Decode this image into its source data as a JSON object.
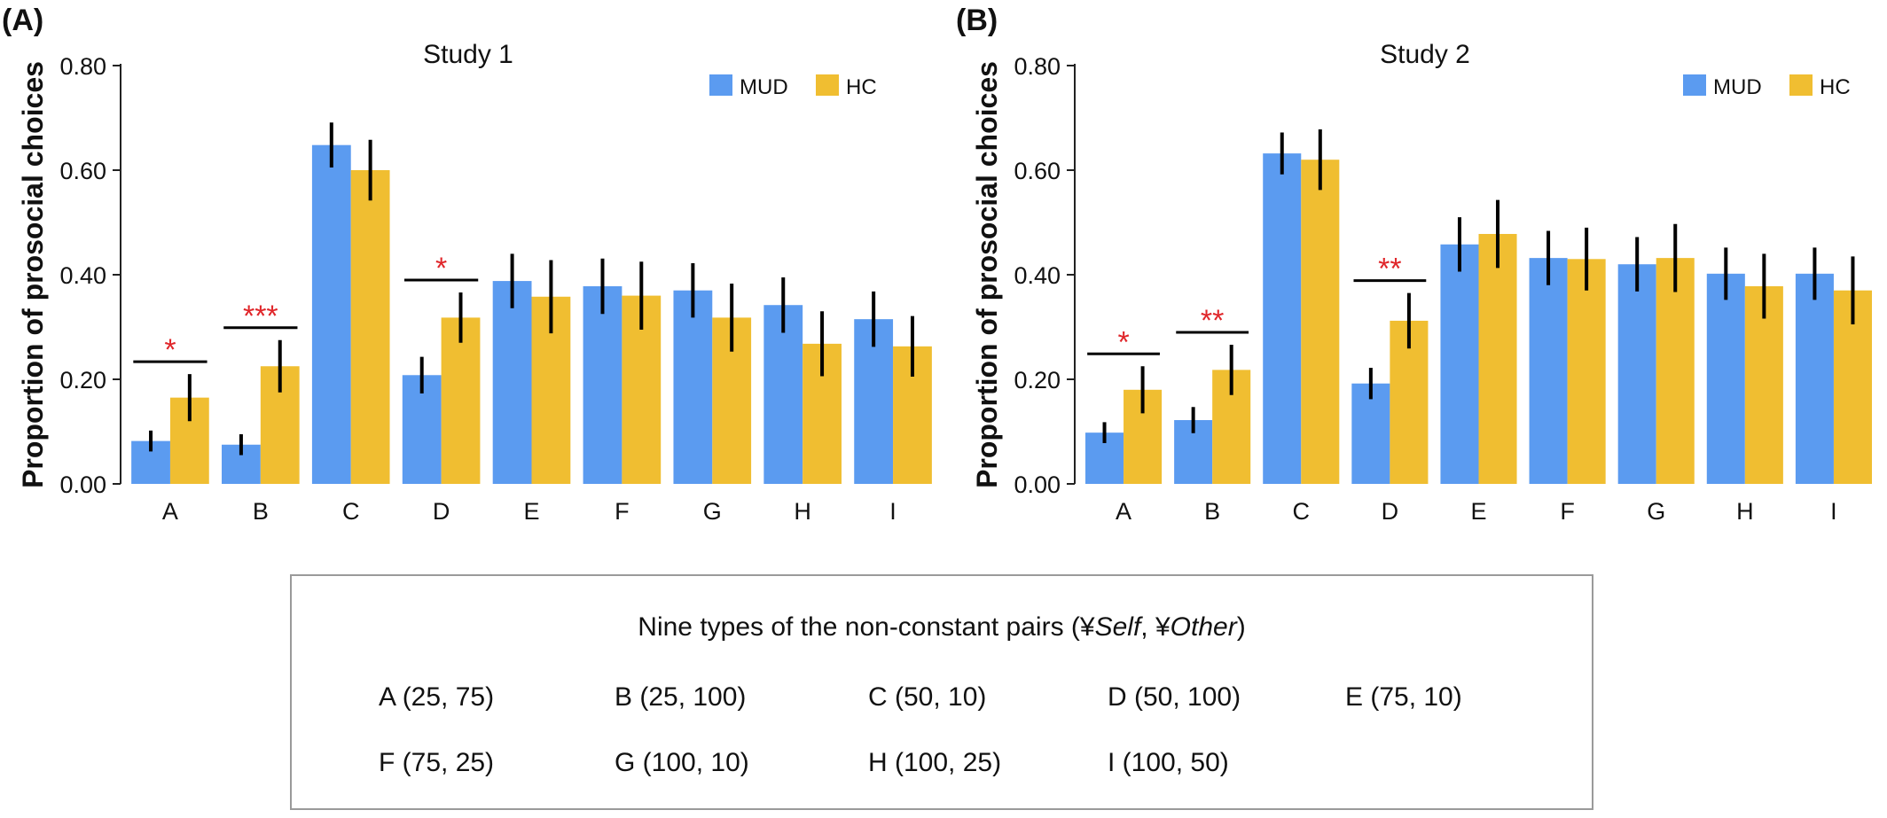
{
  "chart_data": [
    {
      "panel_label": "(A)",
      "type": "bar",
      "title": "Study 1",
      "xlabel": "",
      "ylabel": "Proportion of prosocial choices",
      "ylim": [
        0,
        0.8
      ],
      "yticks": [
        "0.00",
        "0.20",
        "0.40",
        "0.60",
        "0.80"
      ],
      "categories": [
        "A",
        "B",
        "C",
        "D",
        "E",
        "F",
        "G",
        "H",
        "I"
      ],
      "legend_position": "top-right",
      "series": [
        {
          "name": "MUD",
          "color": "#5b9bf0",
          "values": [
            0.082,
            0.075,
            0.648,
            0.208,
            0.388,
            0.378,
            0.37,
            0.342,
            0.315
          ],
          "err": [
            0.02,
            0.02,
            0.043,
            0.035,
            0.052,
            0.053,
            0.052,
            0.053,
            0.053
          ]
        },
        {
          "name": "HC",
          "color": "#f0be31",
          "values": [
            0.165,
            0.225,
            0.6,
            0.318,
            0.358,
            0.36,
            0.318,
            0.268,
            0.263
          ],
          "err": [
            0.045,
            0.05,
            0.058,
            0.048,
            0.07,
            0.065,
            0.065,
            0.062,
            0.058
          ]
        }
      ],
      "significance": [
        {
          "category": "A",
          "label": "*"
        },
        {
          "category": "B",
          "label": "***"
        },
        {
          "category": "D",
          "label": "*"
        }
      ]
    },
    {
      "panel_label": "(B)",
      "type": "bar",
      "title": "Study 2",
      "xlabel": "",
      "ylabel": "Proportion of prosocial choices",
      "ylim": [
        0,
        0.8
      ],
      "yticks": [
        "0.00",
        "0.20",
        "0.40",
        "0.60",
        "0.80"
      ],
      "categories": [
        "A",
        "B",
        "C",
        "D",
        "E",
        "F",
        "G",
        "H",
        "I"
      ],
      "legend_position": "top-right",
      "series": [
        {
          "name": "MUD",
          "color": "#5b9bf0",
          "values": [
            0.098,
            0.122,
            0.632,
            0.192,
            0.458,
            0.432,
            0.42,
            0.402,
            0.402
          ],
          "err": [
            0.02,
            0.025,
            0.04,
            0.03,
            0.052,
            0.052,
            0.052,
            0.05,
            0.05
          ]
        },
        {
          "name": "HC",
          "color": "#f0be31",
          "values": [
            0.18,
            0.218,
            0.62,
            0.312,
            0.478,
            0.43,
            0.432,
            0.378,
            0.37
          ],
          "err": [
            0.045,
            0.048,
            0.058,
            0.053,
            0.065,
            0.06,
            0.065,
            0.062,
            0.065
          ]
        }
      ],
      "significance": [
        {
          "category": "A",
          "label": "*"
        },
        {
          "category": "B",
          "label": "**"
        },
        {
          "category": "D",
          "label": "**"
        }
      ]
    }
  ],
  "pairs_legend": {
    "title_prefix": "Nine types of the non-constant pairs (¥",
    "title_self": "Self",
    "title_sep": ", ¥",
    "title_other": "Other",
    "title_suffix": ")",
    "items": [
      {
        "text": "A (25, 75)"
      },
      {
        "text": "B (25, 100)"
      },
      {
        "text": "C (50, 10)"
      },
      {
        "text": "D (50, 100)"
      },
      {
        "text": "E (75, 10)"
      },
      {
        "text": "F (75, 25)"
      },
      {
        "text": "G (100, 10)"
      },
      {
        "text": "H (100, 25)"
      },
      {
        "text": "I (100, 50)"
      }
    ]
  }
}
